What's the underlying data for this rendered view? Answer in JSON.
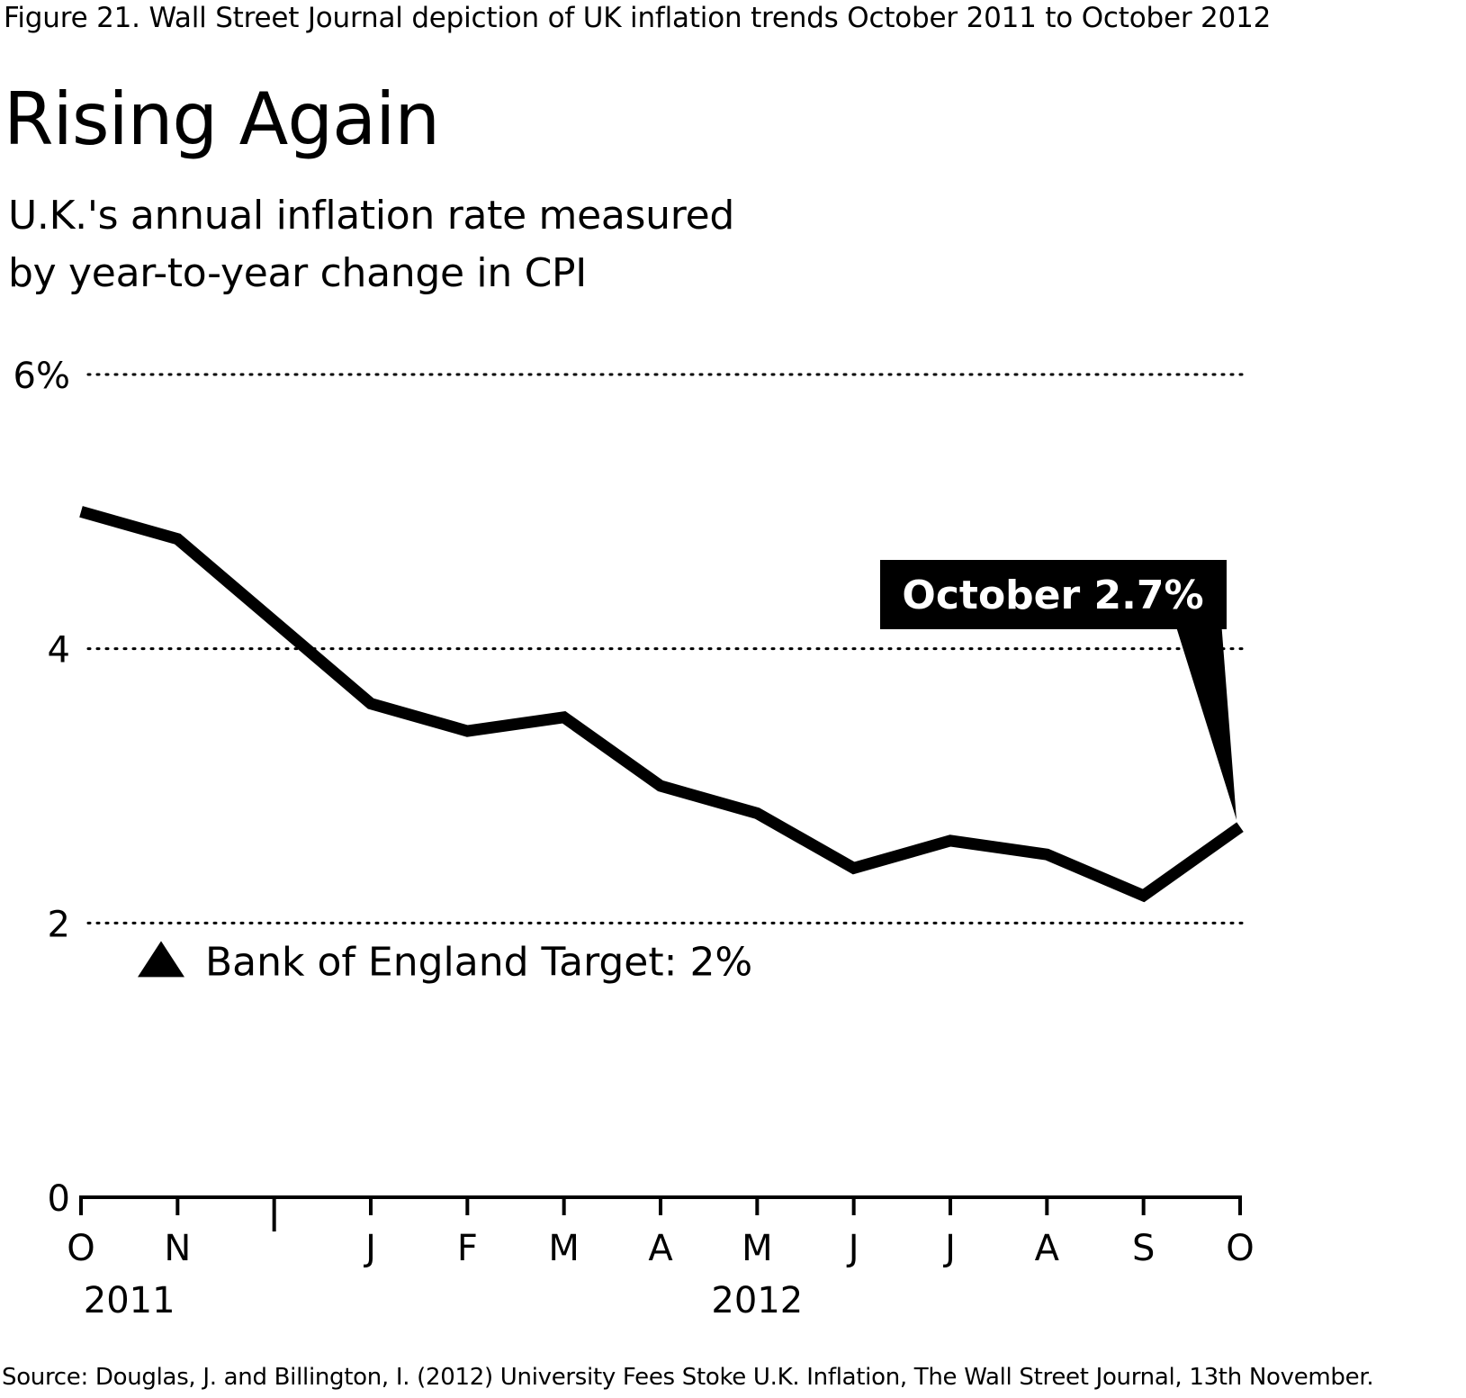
{
  "figure_caption": "Figure 21.  Wall Street Journal depiction of UK inflation trends October  2011 to October 2012",
  "source": "Source: Douglas, J. and Billington, I. (2012) University Fees Stoke U.K. Inflation, The Wall Street Journal, 13th November.",
  "chart_data": {
    "type": "line",
    "title": "Rising Again",
    "subtitle_lines": [
      "U.K.'s annual inflation rate measured",
      "by year-to-year change in CPI"
    ],
    "xlabel": "",
    "ylabel": "",
    "x_tick_labels": [
      "O",
      "N",
      "",
      "J",
      "F",
      "M",
      "A",
      "M",
      "J",
      "J",
      "A",
      "S",
      "O"
    ],
    "x_year_labels": [
      {
        "label": "2011",
        "at_index": 0.5
      },
      {
        "label": "2012",
        "at_index": 7
      }
    ],
    "y_ticks": [
      {
        "value": 0,
        "label": "0"
      },
      {
        "value": 2,
        "label": "2"
      },
      {
        "value": 4,
        "label": "4"
      },
      {
        "value": 6,
        "label": "6%"
      }
    ],
    "ylim": [
      0,
      6
    ],
    "grid": "dotted horizontal",
    "series": [
      {
        "categories": [
          "Oct 2011",
          "Nov 2011",
          "Dec 2011",
          "Jan 2012",
          "Feb 2012",
          "Mar 2012",
          "Apr 2012",
          "May 2012",
          "Jun 2012",
          "Jul 2012",
          "Aug 2012",
          "Sep 2012",
          "Oct 2012"
        ],
        "values": [
          5.0,
          4.8,
          4.2,
          3.6,
          3.4,
          3.5,
          3.0,
          2.8,
          2.4,
          2.6,
          2.5,
          2.2,
          2.7
        ],
        "color": "#000000"
      }
    ],
    "target": {
      "value": 2,
      "label": "Bank of England Target: 2%",
      "marker": "triangle-up"
    },
    "callout": {
      "label": "October 2.7%",
      "point_index": 12
    }
  }
}
